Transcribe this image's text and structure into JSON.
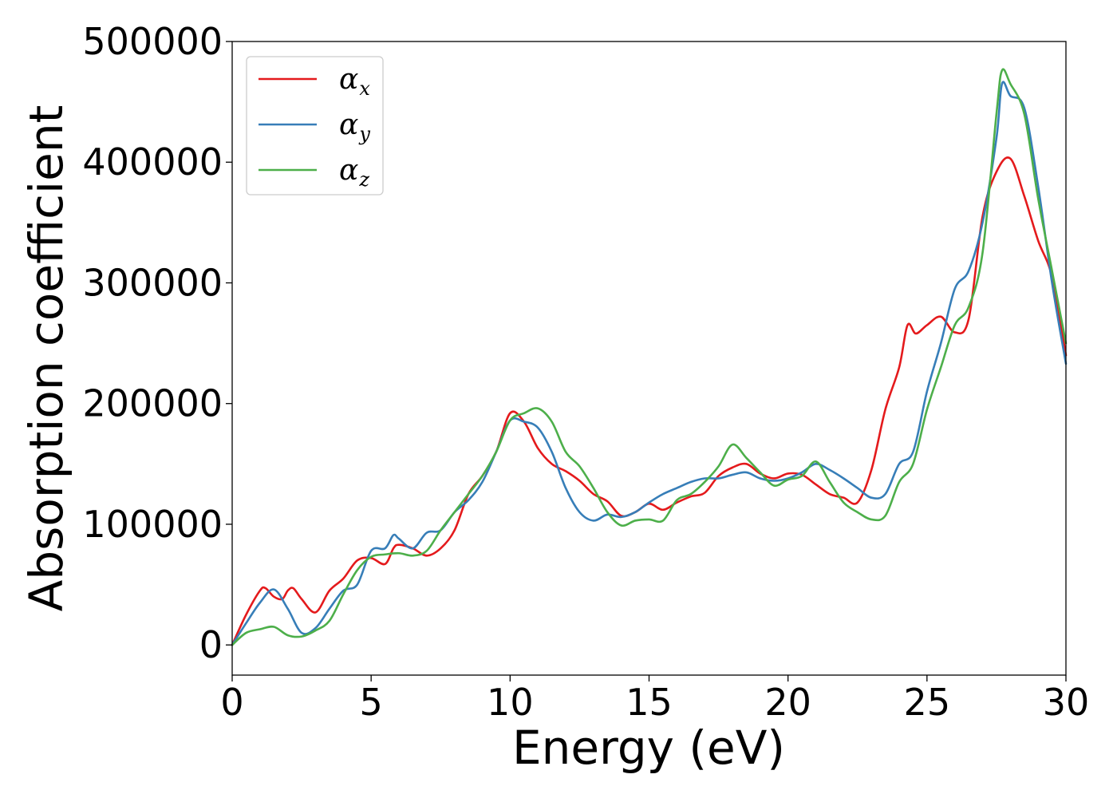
{
  "chart_data": {
    "type": "line",
    "xlabel": "Energy (eV)",
    "ylabel": "Absorption coefficient",
    "xlim": [
      0,
      30
    ],
    "ylim": [
      -25000,
      500000
    ],
    "xticks": [
      0,
      5,
      10,
      15,
      20,
      25,
      30
    ],
    "yticks": [
      0,
      100000,
      200000,
      300000,
      400000,
      500000
    ],
    "grid": false,
    "legend": "top-left",
    "series": [
      {
        "name": "α",
        "subscript": "x",
        "color": "#e41a1c",
        "x": [
          0,
          0.5,
          1.0,
          1.2,
          1.5,
          1.8,
          2.0,
          2.2,
          2.5,
          3.0,
          3.5,
          4.0,
          4.5,
          5.0,
          5.5,
          5.8,
          6.0,
          6.5,
          7.0,
          7.5,
          8.0,
          8.5,
          9.0,
          9.5,
          10.0,
          10.5,
          11.0,
          11.5,
          12.0,
          12.5,
          13.0,
          13.5,
          14.0,
          14.5,
          15.0,
          15.5,
          16.0,
          16.5,
          17.0,
          17.5,
          18.0,
          18.5,
          19.0,
          19.5,
          20.0,
          20.5,
          21.0,
          21.5,
          22.0,
          22.5,
          23.0,
          23.5,
          24.0,
          24.3,
          24.6,
          25.0,
          25.5,
          26.0,
          26.5,
          27.0,
          27.5,
          28.0,
          28.5,
          29.0,
          29.5,
          30.0
        ],
        "y": [
          0,
          25000,
          45000,
          47000,
          40000,
          38000,
          45000,
          47000,
          38000,
          27000,
          45000,
          55000,
          70000,
          72000,
          67000,
          80000,
          83000,
          80000,
          74000,
          80000,
          95000,
          125000,
          140000,
          160000,
          192000,
          185000,
          163000,
          150000,
          144000,
          136000,
          125000,
          119000,
          107000,
          110000,
          117000,
          112000,
          118000,
          123000,
          126000,
          140000,
          147000,
          150000,
          142000,
          138000,
          142000,
          141000,
          133000,
          125000,
          122000,
          118000,
          145000,
          195000,
          230000,
          265000,
          258000,
          265000,
          272000,
          259000,
          270000,
          355000,
          392000,
          403000,
          372000,
          335000,
          305000,
          240000
        ]
      },
      {
        "name": "α",
        "subscript": "y",
        "color": "#377eb8",
        "x": [
          0,
          0.5,
          1.0,
          1.5,
          2.0,
          2.5,
          3.0,
          3.5,
          4.0,
          4.5,
          5.0,
          5.5,
          5.8,
          6.0,
          6.5,
          7.0,
          7.5,
          8.0,
          8.5,
          9.0,
          9.5,
          10.0,
          10.5,
          11.0,
          11.5,
          12.0,
          12.5,
          13.0,
          13.5,
          14.0,
          14.5,
          15.0,
          15.5,
          16.0,
          16.5,
          17.0,
          17.5,
          18.0,
          18.5,
          19.0,
          19.5,
          20.0,
          20.5,
          21.0,
          21.5,
          22.0,
          22.5,
          23.0,
          23.5,
          24.0,
          24.5,
          25.0,
          25.5,
          26.0,
          26.5,
          27.0,
          27.5,
          27.7,
          28.0,
          28.5,
          29.0,
          29.5,
          30.0
        ],
        "y": [
          0,
          18000,
          35000,
          46000,
          30000,
          10000,
          14000,
          30000,
          45000,
          50000,
          78000,
          80000,
          91000,
          88000,
          80000,
          93000,
          95000,
          110000,
          120000,
          135000,
          160000,
          186000,
          185000,
          180000,
          160000,
          130000,
          110000,
          103000,
          108000,
          106000,
          110000,
          118000,
          125000,
          130000,
          135000,
          138000,
          138000,
          141000,
          143000,
          138000,
          136000,
          138000,
          143000,
          150000,
          145000,
          138000,
          130000,
          122000,
          125000,
          150000,
          160000,
          210000,
          250000,
          295000,
          310000,
          350000,
          420000,
          465000,
          455000,
          445000,
          380000,
          300000,
          233000
        ]
      },
      {
        "name": "α",
        "subscript": "z",
        "color": "#4daf4a",
        "x": [
          0,
          0.5,
          1.0,
          1.5,
          2.0,
          2.5,
          3.0,
          3.5,
          4.0,
          4.5,
          5.0,
          5.5,
          6.0,
          6.5,
          7.0,
          7.5,
          8.0,
          8.5,
          9.0,
          9.5,
          10.0,
          10.5,
          11.0,
          11.5,
          12.0,
          12.5,
          13.0,
          13.5,
          14.0,
          14.5,
          15.0,
          15.5,
          16.0,
          16.5,
          17.0,
          17.5,
          18.0,
          18.5,
          19.0,
          19.5,
          20.0,
          20.5,
          21.0,
          21.5,
          22.0,
          22.5,
          23.0,
          23.5,
          24.0,
          24.5,
          25.0,
          25.5,
          26.0,
          26.5,
          27.0,
          27.5,
          27.7,
          28.0,
          28.5,
          29.0,
          29.5,
          30.0
        ],
        "y": [
          0,
          10000,
          13000,
          15000,
          8000,
          7000,
          12000,
          20000,
          42000,
          62000,
          73000,
          75000,
          76000,
          74000,
          78000,
          95000,
          110000,
          125000,
          140000,
          160000,
          186000,
          192000,
          196000,
          185000,
          160000,
          148000,
          130000,
          110000,
          99000,
          103000,
          104000,
          103000,
          120000,
          125000,
          135000,
          148000,
          166000,
          155000,
          143000,
          132000,
          137000,
          140000,
          152000,
          135000,
          118000,
          110000,
          104000,
          107000,
          135000,
          150000,
          195000,
          230000,
          265000,
          280000,
          325000,
          440000,
          476000,
          465000,
          440000,
          370000,
          310000,
          250000
        ]
      }
    ]
  }
}
